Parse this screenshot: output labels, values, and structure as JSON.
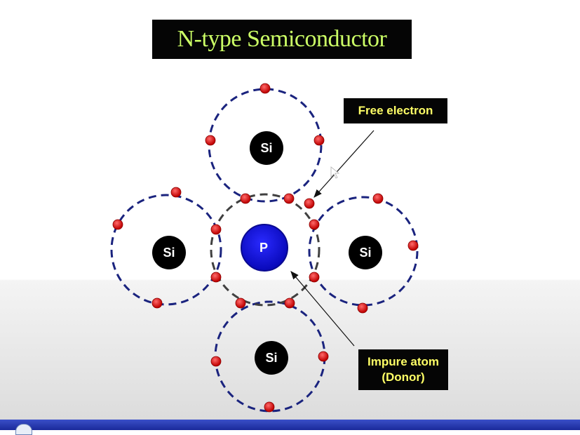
{
  "title": "N-type Semiconductor",
  "labels": {
    "free_electron": "Free electron",
    "impure_atom_line1": "Impure atom",
    "impure_atom_line2": "(Donor)"
  },
  "atoms": {
    "center": "P",
    "top": "Si",
    "left": "Si",
    "right": "Si",
    "bottom": "Si"
  },
  "colors": {
    "title_text": "#ccff66",
    "label_text": "#ffff66",
    "orbit": "#1a237e",
    "center_orbit": "#404040",
    "electron": "#e02020",
    "donor_atom": "#1010d0",
    "si_atom": "#000000"
  },
  "icons": {
    "arrow": "arrow-pointer",
    "cursor": "mouse-cursor-icon"
  }
}
